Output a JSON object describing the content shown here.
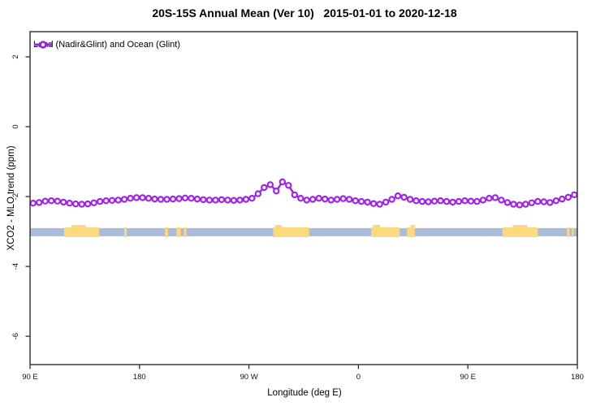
{
  "title": "20S-15S Annual Mean (Ver 10)   2015-01-01 to 2020-12-18",
  "legend": {
    "label": "Land (Nadir&Glint) and Ocean (Glint)"
  },
  "axes": {
    "x": {
      "label": "Longitude (deg E)"
    },
    "y": {
      "label": "XCO2 - MLO trend (ppm)"
    }
  },
  "colors": {
    "series": "#A020F0",
    "ocean": "#AABCD9",
    "land": "#FBD97E",
    "axis": "#2E2E2E",
    "background": "#FFFFFF"
  },
  "chart_data": {
    "type": "line",
    "title": "20S-15S Annual Mean (Ver 10)   2015-01-01 to 2020-12-18",
    "xlabel": "Longitude (deg E)",
    "ylabel": "XCO2 - MLO trend (ppm)",
    "xlim": [
      90,
      540
    ],
    "ylim": [
      -6.81,
      2.72
    ],
    "grid": false,
    "legend_position": "top-left-inside",
    "x_ticks": [
      {
        "value": 90,
        "label": "90 E"
      },
      {
        "value": 180,
        "label": "180"
      },
      {
        "value": 270,
        "label": "90 W"
      },
      {
        "value": 360,
        "label": "0"
      },
      {
        "value": 450,
        "label": "90 E"
      },
      {
        "value": 540,
        "label": "180"
      }
    ],
    "y_ticks": [
      {
        "value": 2,
        "label": "2"
      },
      {
        "value": 0,
        "label": "0"
      },
      {
        "value": -2,
        "label": "-2"
      },
      {
        "value": -4,
        "label": "-4"
      },
      {
        "value": -6,
        "label": "-6"
      }
    ],
    "series": [
      {
        "name": "Land (Nadir&Glint) and Ocean (Glint)",
        "color": "#A020F0",
        "marker": "open-circle",
        "x": [
          92.5,
          97.5,
          102.5,
          107.5,
          112.5,
          117.5,
          122.5,
          127.5,
          132.5,
          137.5,
          142.5,
          147.5,
          152.5,
          157.5,
          162.5,
          167.5,
          172.5,
          177.5,
          182.5,
          187.5,
          192.5,
          197.5,
          202.5,
          207.5,
          212.5,
          217.5,
          222.5,
          227.5,
          232.5,
          237.5,
          242.5,
          247.5,
          252.5,
          257.5,
          262.5,
          267.5,
          272.5,
          277.5,
          282.5,
          287.5,
          292.5,
          297.5,
          302.5,
          307.5,
          312.5,
          317.5,
          322.5,
          327.5,
          332.5,
          337.5,
          342.5,
          347.5,
          352.5,
          357.5,
          362.5,
          367.5,
          372.5,
          377.5,
          382.5,
          387.5,
          392.5,
          397.5,
          402.5,
          407.5,
          412.5,
          417.5,
          422.5,
          427.5,
          432.5,
          437.5,
          442.5,
          447.5,
          452.5,
          457.5,
          462.5,
          467.5,
          472.5,
          477.5,
          482.5,
          487.5,
          492.5,
          497.5,
          502.5,
          507.5,
          512.5,
          517.5,
          522.5,
          527.5,
          532.5,
          537.5
        ],
        "y": [
          -2.19,
          -2.17,
          -2.13,
          -2.12,
          -2.13,
          -2.16,
          -2.19,
          -2.21,
          -2.22,
          -2.21,
          -2.18,
          -2.14,
          -2.12,
          -2.11,
          -2.1,
          -2.08,
          -2.05,
          -2.03,
          -2.03,
          -2.05,
          -2.07,
          -2.08,
          -2.08,
          -2.07,
          -2.06,
          -2.04,
          -2.05,
          -2.07,
          -2.09,
          -2.1,
          -2.1,
          -2.09,
          -2.1,
          -2.11,
          -2.1,
          -2.08,
          -2.05,
          -1.92,
          -1.74,
          -1.66,
          -1.84,
          -1.58,
          -1.68,
          -1.95,
          -2.05,
          -2.1,
          -2.08,
          -2.05,
          -2.07,
          -2.1,
          -2.08,
          -2.06,
          -2.08,
          -2.12,
          -2.14,
          -2.16,
          -2.2,
          -2.22,
          -2.16,
          -2.08,
          -1.98,
          -2.02,
          -2.08,
          -2.12,
          -2.14,
          -2.15,
          -2.13,
          -2.12,
          -2.14,
          -2.16,
          -2.14,
          -2.12,
          -2.13,
          -2.14,
          -2.1,
          -2.05,
          -2.03,
          -2.1,
          -2.17,
          -2.22,
          -2.24,
          -2.22,
          -2.18,
          -2.14,
          -2.15,
          -2.17,
          -2.12,
          -2.07,
          -2.02,
          -1.95
        ]
      }
    ],
    "map_strip": {
      "description": "land/ocean band along latitude zone",
      "center_value": -3.02,
      "ocean_color": "#AABCD9",
      "land_color": "#FBD97E",
      "ocean_range": [
        90,
        540
      ],
      "land_segments": [
        [
          118,
          147
        ],
        [
          167.5,
          169.5
        ],
        [
          201,
          203.5
        ],
        [
          210.5,
          214
        ],
        [
          216.5,
          218.5
        ],
        [
          290,
          319.5
        ],
        [
          370.5,
          394
        ],
        [
          400,
          406.5
        ],
        [
          478.5,
          507.5
        ],
        [
          531.5,
          533.5
        ],
        [
          535.5,
          537
        ]
      ],
      "land_bumps": [
        [
          124,
          136
        ],
        [
          291,
          297
        ],
        [
          372,
          378
        ],
        [
          403,
          406.5
        ],
        [
          487,
          499
        ]
      ]
    }
  }
}
